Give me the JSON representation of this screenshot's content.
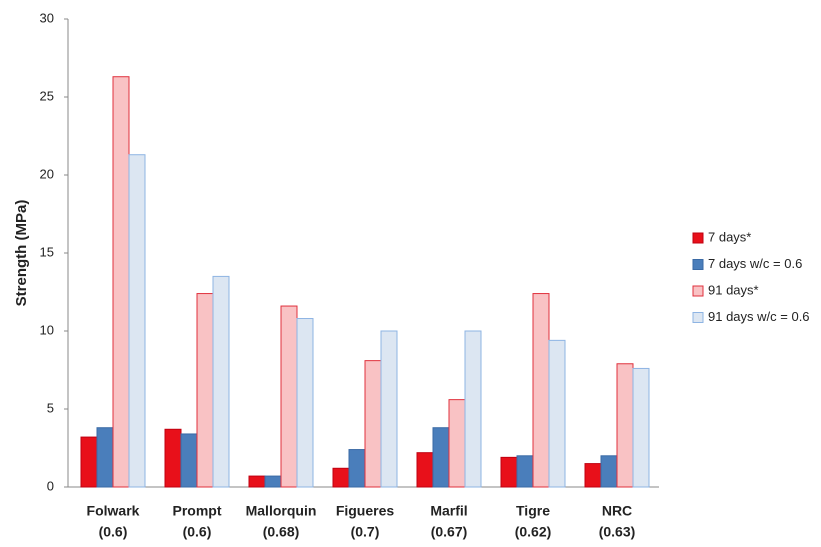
{
  "chart_data": {
    "type": "bar",
    "y_label": "Strength (MPa)",
    "categories": [
      [
        "Folwark",
        "(0.6)"
      ],
      [
        "Prompt",
        "(0.6)"
      ],
      [
        "Mallorquin",
        "(0.68)"
      ],
      [
        "Figueres",
        "(0.7)"
      ],
      [
        "Marfil",
        "(0.67)"
      ],
      [
        "Tigre",
        "(0.62)"
      ],
      [
        "NRC",
        "(0.63)"
      ]
    ],
    "series": [
      {
        "name": "7 days*",
        "color": "#e8101a",
        "edgecolor": "#c00010",
        "values": [
          3.2,
          3.7,
          0.7,
          1.2,
          2.2,
          1.9,
          1.5
        ]
      },
      {
        "name": "7 days w/c = 0.6",
        "color": "#4a7ebb",
        "edgecolor": "#3a6aa5",
        "values": [
          3.8,
          3.4,
          0.7,
          2.4,
          3.8,
          2.0,
          2.0
        ]
      },
      {
        "name": "91 days*",
        "color": "#f9c2c4",
        "edgecolor": "#e0303c",
        "values": [
          26.3,
          12.4,
          11.6,
          8.1,
          5.6,
          12.4,
          7.9
        ]
      },
      {
        "name": "91 days w/c = 0.6",
        "color": "#dce6f2",
        "edgecolor": "#8eb4e3",
        "values": [
          21.3,
          13.5,
          10.8,
          10.0,
          10.0,
          9.4,
          7.6
        ]
      }
    ],
    "ylim": [
      0,
      30
    ],
    "yticks": [
      0,
      5,
      10,
      15,
      20,
      25,
      30
    ],
    "grid": false,
    "legend": "right"
  }
}
